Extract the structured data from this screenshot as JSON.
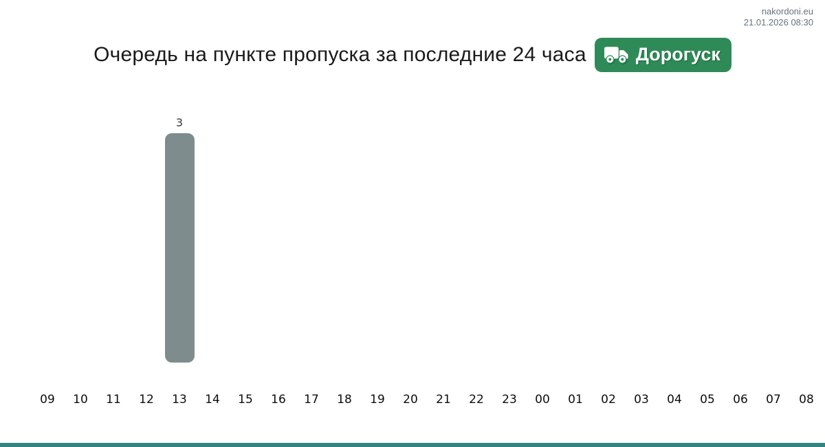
{
  "site_info": {
    "site": "nakordoni.eu",
    "datetime": "21.01.2026 08:30"
  },
  "header": {
    "title": "Очередь на пункте пропуска за последние 24 часа",
    "badge": {
      "label": "Дорогуск",
      "icon": "truck-icon",
      "background": "#2e8b57",
      "text_color": "#ffffff"
    }
  },
  "chart_data": {
    "type": "bar",
    "title": "Очередь на пункте пропуска за последние 24 часа",
    "categories": [
      "09",
      "10",
      "11",
      "12",
      "13",
      "14",
      "15",
      "16",
      "17",
      "18",
      "19",
      "20",
      "21",
      "22",
      "23",
      "00",
      "01",
      "02",
      "03",
      "04",
      "05",
      "06",
      "07",
      "08"
    ],
    "values": [
      0,
      0,
      0,
      0,
      3,
      0,
      0,
      0,
      0,
      0,
      0,
      0,
      0,
      0,
      0,
      0,
      0,
      0,
      0,
      0,
      0,
      0,
      0,
      0
    ],
    "xlabel": "",
    "ylabel": "",
    "ylim": [
      0,
      3
    ],
    "grid": false,
    "legend": false,
    "value_labels": true,
    "bar_color": "#7e8c8d",
    "value_label_color": "#3a3a3a",
    "tick_color": "#0d0d0d"
  },
  "footer": {
    "accent_bar_color": "#348383"
  }
}
